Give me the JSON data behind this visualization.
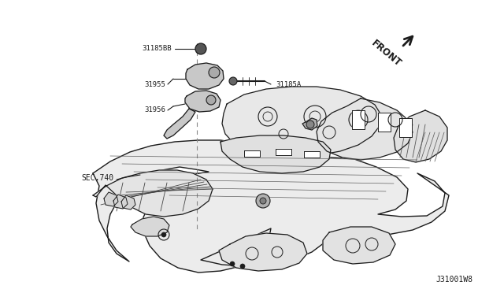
{
  "bg_color": "#ffffff",
  "line_color": "#1c1c1c",
  "labels": {
    "part1": "31185BB",
    "part2": "31955",
    "part3": "31956",
    "part4": "31185A",
    "sec": "SEC.740",
    "front": "FRONT",
    "watermark": "J31001W8"
  },
  "figsize": [
    6.4,
    3.72
  ],
  "dpi": 100
}
